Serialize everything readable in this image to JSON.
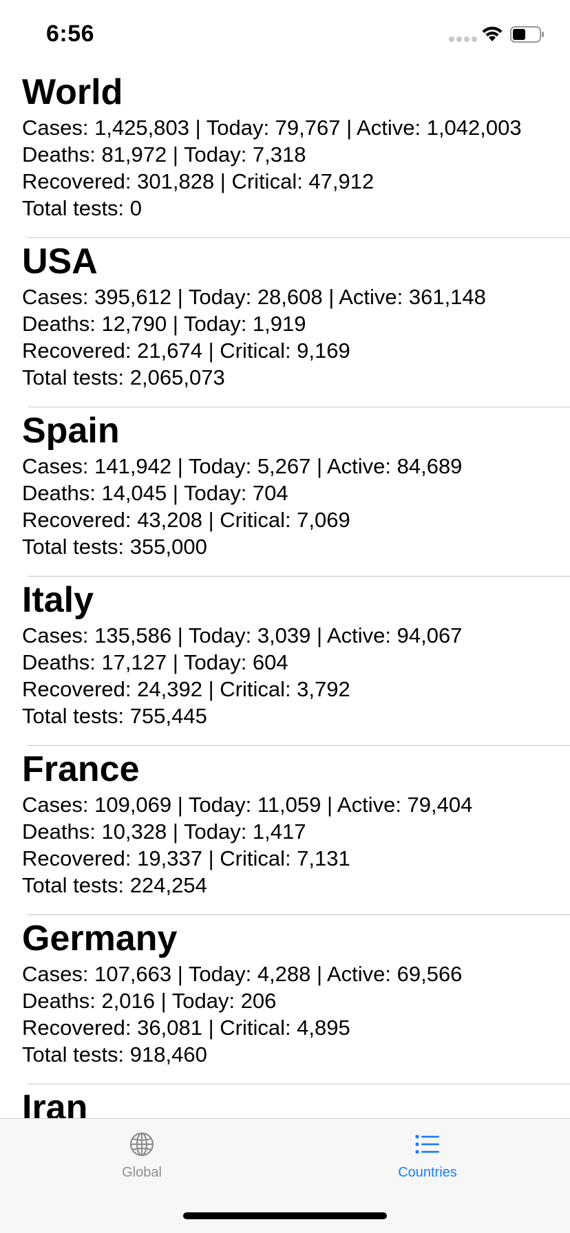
{
  "status_bar": {
    "time": "6:56"
  },
  "countries": [
    {
      "name": "World",
      "line1": "Cases: 1,425,803 | Today: 79,767 | Active: 1,042,003",
      "line2": "Deaths: 81,972 | Today: 7,318",
      "line3": "Recovered: 301,828 | Critical: 47,912",
      "line4": "Total tests: 0"
    },
    {
      "name": "USA",
      "line1": "Cases: 395,612 | Today: 28,608 | Active: 361,148",
      "line2": "Deaths: 12,790 | Today: 1,919",
      "line3": "Recovered: 21,674 | Critical: 9,169",
      "line4": "Total tests: 2,065,073"
    },
    {
      "name": "Spain",
      "line1": "Cases: 141,942 | Today: 5,267 | Active: 84,689",
      "line2": "Deaths: 14,045 | Today: 704",
      "line3": "Recovered: 43,208 | Critical: 7,069",
      "line4": "Total tests: 355,000"
    },
    {
      "name": "Italy",
      "line1": "Cases: 135,586 | Today: 3,039 | Active: 94,067",
      "line2": "Deaths: 17,127 | Today: 604",
      "line3": "Recovered: 24,392 | Critical: 3,792",
      "line4": "Total tests: 755,445"
    },
    {
      "name": "France",
      "line1": "Cases: 109,069 | Today: 11,059 | Active: 79,404",
      "line2": "Deaths: 10,328 | Today: 1,417",
      "line3": "Recovered: 19,337 | Critical: 7,131",
      "line4": "Total tests: 224,254"
    },
    {
      "name": "Germany",
      "line1": "Cases: 107,663 | Today: 4,288 | Active: 69,566",
      "line2": "Deaths: 2,016 | Today: 206",
      "line3": "Recovered: 36,081 | Critical: 4,895",
      "line4": "Total tests: 918,460"
    },
    {
      "name": "Iran",
      "line1": "",
      "line2": "",
      "line3": "",
      "line4": ""
    }
  ],
  "tab_bar": {
    "tabs": [
      {
        "label": "Global",
        "icon": "globe-icon",
        "selected": false
      },
      {
        "label": "Countries",
        "icon": "list-icon",
        "selected": true
      }
    ]
  },
  "colors": {
    "accent": "#1a7cf5",
    "inactive": "#8e8e93",
    "separator": "#c6c6c8"
  }
}
